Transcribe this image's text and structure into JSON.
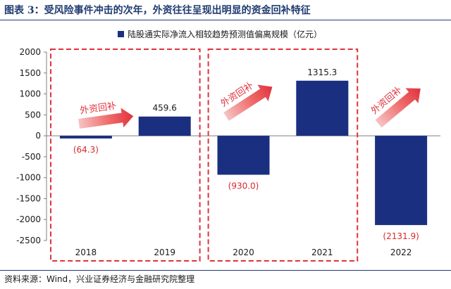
{
  "header": {
    "title": "图表 3：受风险事件冲击的次年，外资往往呈现出明显的资金回补特征"
  },
  "footer": {
    "source": "资料来源：Wind，兴业证券经济与金融研究院整理"
  },
  "annotations": {
    "arrow_label": "外资回补"
  },
  "colors": {
    "bar": "#1b2f80",
    "annotation": "#e0323c",
    "label_negative": "#d9272e",
    "rule": "#1f3b70"
  },
  "chart_data": {
    "type": "bar",
    "categories": [
      "2018",
      "2019",
      "2020",
      "2021",
      "2022"
    ],
    "series": [
      {
        "name": "陆股通实际净流入相较趋势预测值偏离规模（亿元）",
        "values": [
          -64.3,
          459.6,
          -930.0,
          1315.3,
          -2131.9
        ]
      }
    ],
    "data_labels": [
      "(64.3)",
      "459.6",
      "(930.0)",
      "1315.3",
      "(2131.9)"
    ],
    "ylim": [
      -2500,
      2000
    ],
    "yticks": [
      2000,
      1500,
      1000,
      500,
      0,
      -500,
      -1000,
      -1500,
      -2000,
      -2500
    ],
    "ytick_labels": [
      "2000",
      "1500",
      "1000",
      "500",
      "0",
      "-500",
      "-1000",
      "-1500",
      "-2000",
      "-2500"
    ],
    "xlabel": "",
    "ylabel": "",
    "legend": "top",
    "grid": false
  }
}
